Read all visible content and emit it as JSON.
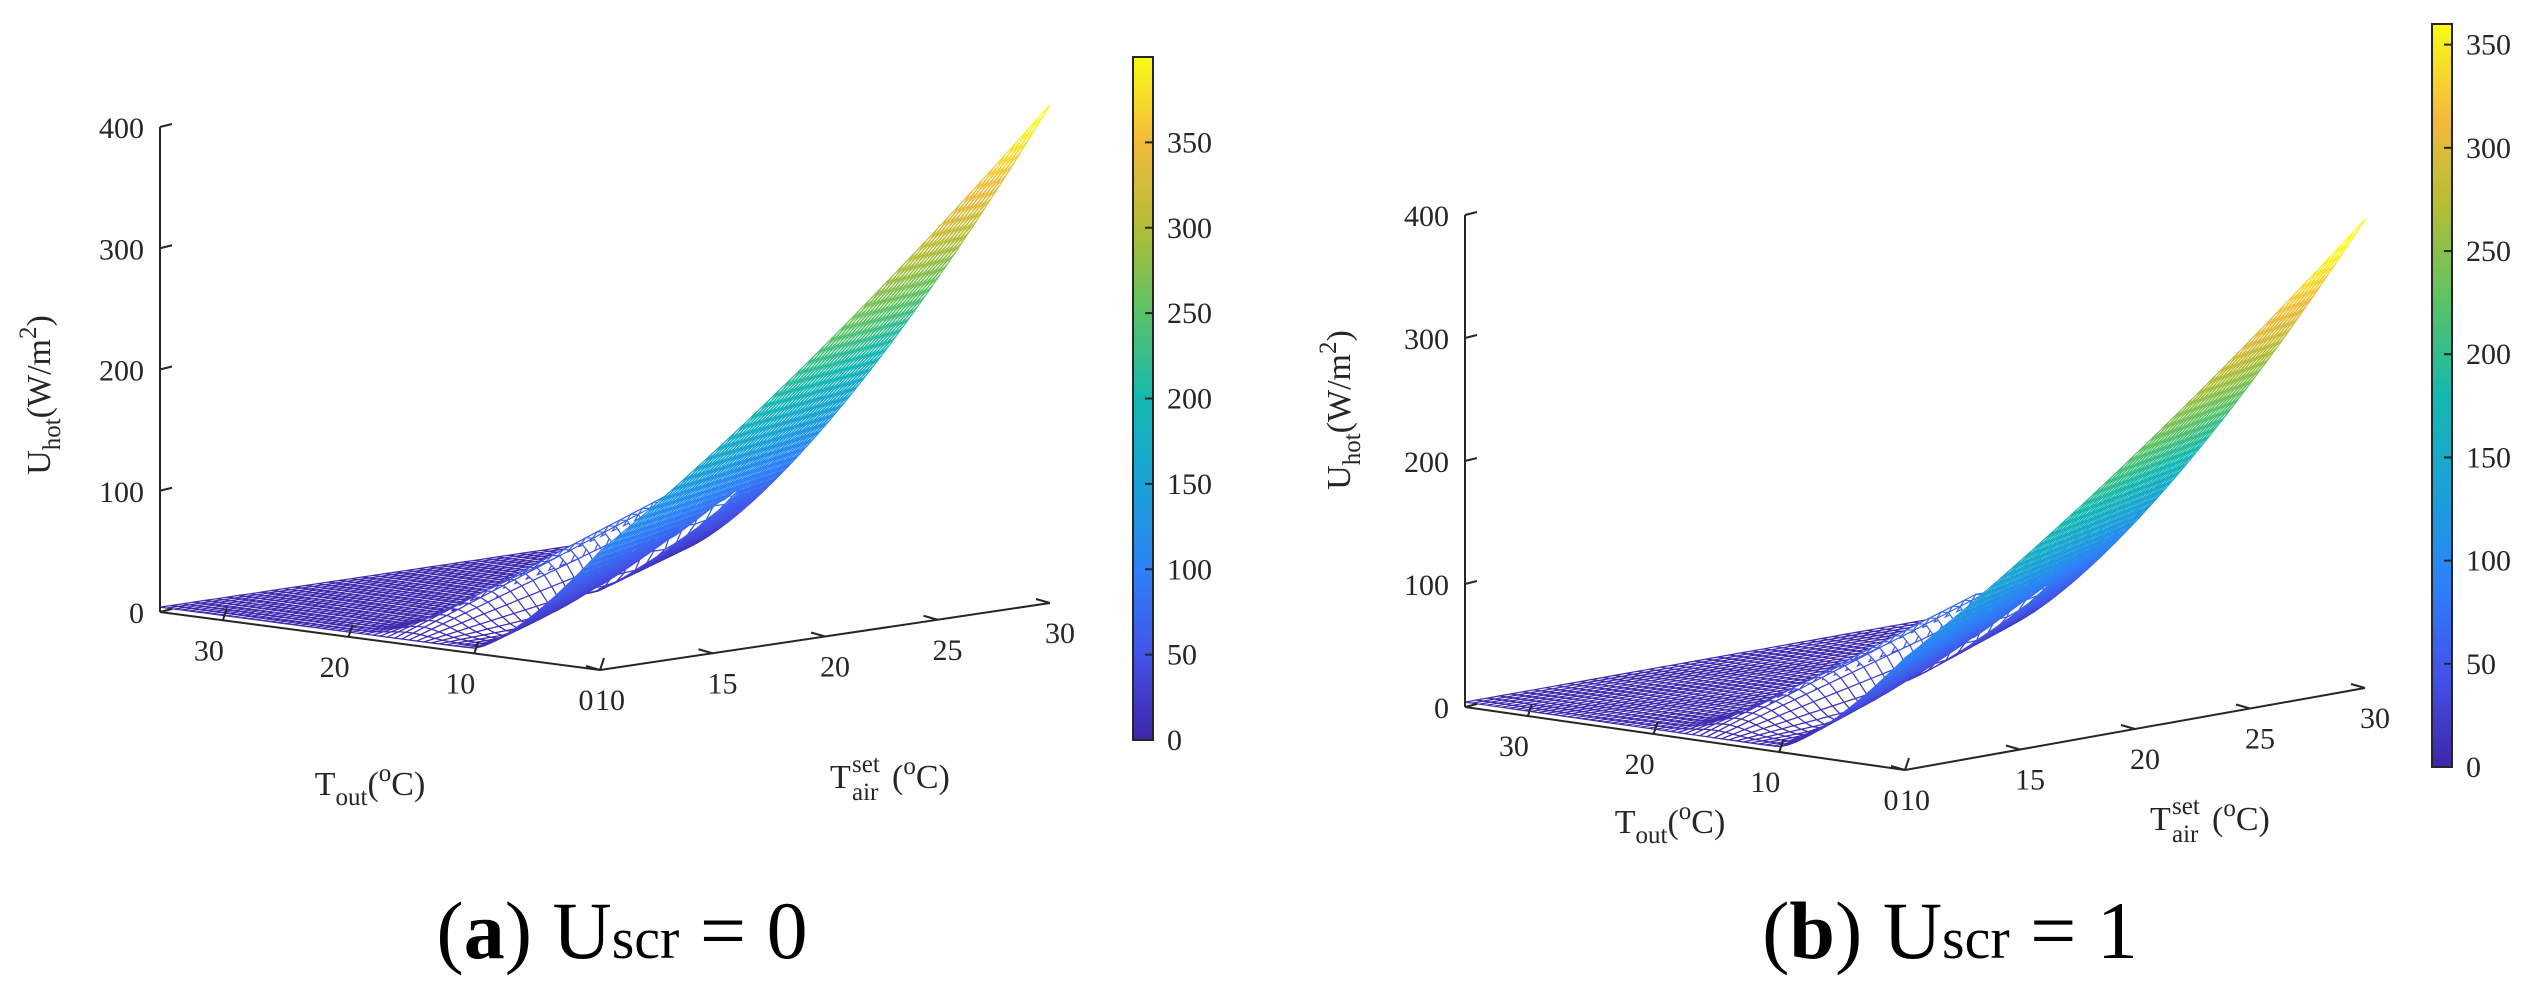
{
  "chart_data": [
    {
      "type": "surface",
      "panel": "a",
      "caption": {
        "letter": "a",
        "variable": "U",
        "sub": "scr",
        "rest": " = 0"
      },
      "zlabel": {
        "base": "U",
        "sub": "hot",
        "rest": "(W/m",
        "sup": "2",
        "close": ")"
      },
      "xlabel": {
        "base": "T",
        "sub": "out",
        "rest": "(",
        "sup": "o",
        "close": "C)"
      },
      "ylabel": {
        "base": "T",
        "sub": "air",
        "sup": "set",
        "rest": "(",
        "sup2": "o",
        "close": "C)"
      },
      "x_ticks": [
        "30",
        "20",
        "10",
        "0"
      ],
      "x_tick_values": [
        30,
        20,
        10,
        0
      ],
      "y_ticks": [
        "10",
        "15",
        "20",
        "25",
        "30"
      ],
      "y_tick_values": [
        10,
        15,
        20,
        25,
        30
      ],
      "z_ticks": [
        "0",
        "100",
        "200",
        "300",
        "400"
      ],
      "z_tick_values": [
        0,
        100,
        200,
        300,
        400
      ],
      "xlim": [
        0,
        35
      ],
      "ylim": [
        10,
        30
      ],
      "zlim": [
        0,
        400
      ],
      "colorbar": {
        "ticks": [
          "0",
          "50",
          "100",
          "150",
          "200",
          "250",
          "300",
          "350"
        ],
        "tick_values": [
          0,
          50,
          100,
          150,
          200,
          250,
          300,
          350
        ],
        "max": 400
      },
      "surface": {
        "description_values": "U_hot as function of T_out and T_air_set",
        "corner_values": {
          "Tout35_Tset10": 8,
          "Tout0_Tset10": 5,
          "Tout0_Tset30": 410,
          "Tout35_Tset30": 10
        },
        "ridge_value": 95,
        "knee_value": 180
      }
    },
    {
      "type": "surface",
      "panel": "b",
      "caption": {
        "letter": "b",
        "variable": "U",
        "sub": "scr",
        "rest": " = 1"
      },
      "zlabel": {
        "base": "U",
        "sub": "hot",
        "rest": "(W/m",
        "sup": "2",
        "close": ")"
      },
      "xlabel": {
        "base": "T",
        "sub": "out",
        "rest": "(",
        "sup": "o",
        "close": "C)"
      },
      "ylabel": {
        "base": "T",
        "sub": "air",
        "sup": "set",
        "rest": "(",
        "sup2": "o",
        "close": "C)"
      },
      "x_ticks": [
        "30",
        "20",
        "10",
        "0"
      ],
      "x_tick_values": [
        30,
        20,
        10,
        0
      ],
      "y_ticks": [
        "10",
        "15",
        "20",
        "25",
        "30"
      ],
      "y_tick_values": [
        10,
        15,
        20,
        25,
        30
      ],
      "z_ticks": [
        "0",
        "100",
        "200",
        "300",
        "400"
      ],
      "z_tick_values": [
        0,
        100,
        200,
        300,
        400
      ],
      "xlim": [
        0,
        35
      ],
      "ylim": [
        10,
        30
      ],
      "zlim": [
        0,
        400
      ],
      "colorbar": {
        "ticks": [
          "0",
          "50",
          "100",
          "150",
          "200",
          "250",
          "300",
          "350"
        ],
        "tick_values": [
          0,
          50,
          100,
          150,
          200,
          250,
          300,
          350
        ],
        "max": 360
      },
      "surface": {
        "description_values": "U_hot as function of T_out and T_air_set",
        "corner_values": {
          "Tout35_Tset10": 8,
          "Tout0_Tset10": 5,
          "Tout0_Tset30": 380,
          "Tout35_Tset30": 10
        },
        "ridge_value": 85,
        "knee_value": 200
      }
    }
  ]
}
